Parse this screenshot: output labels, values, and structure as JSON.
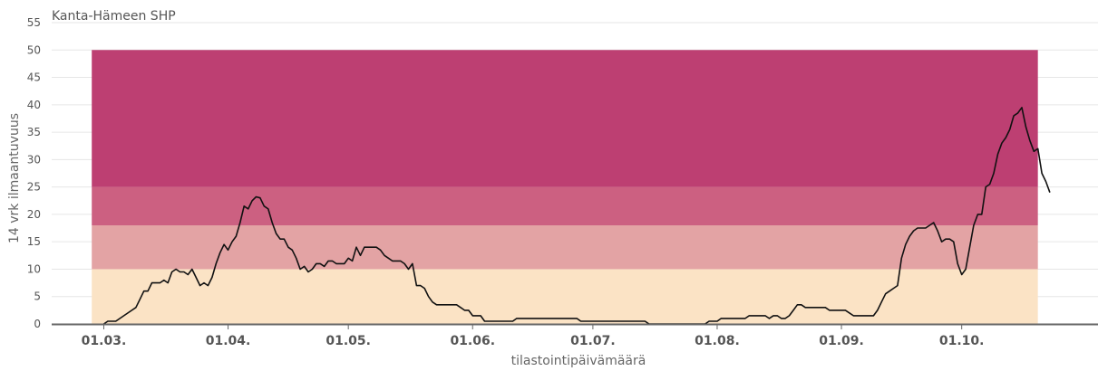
{
  "chart_data": {
    "type": "line",
    "title": "Kanta-Hämeen SHP",
    "xlabel": "tilastointipäivämäärä",
    "ylabel": "14 vrk ilmaantuvuus",
    "ylim": [
      0,
      55
    ],
    "yticks": [
      0,
      5,
      10,
      15,
      20,
      25,
      30,
      35,
      40,
      45,
      50,
      55
    ],
    "xticks": [
      {
        "label": "01.03.",
        "day": 0
      },
      {
        "label": "01.04.",
        "day": 31
      },
      {
        "label": "01.05.",
        "day": 61
      },
      {
        "label": "01.06.",
        "day": 92
      },
      {
        "label": "01.07.",
        "day": 122
      },
      {
        "label": "01.08.",
        "day": 153
      },
      {
        "label": "01.09.",
        "day": 184
      },
      {
        "label": "01.10.",
        "day": 214
      }
    ],
    "xrange_days": [
      -13,
      248
    ],
    "bands_xrange_days": [
      -3,
      233
    ],
    "bands": [
      {
        "from": 0,
        "to": 10,
        "color": "#fbe3c5"
      },
      {
        "from": 10,
        "to": 18,
        "color": "#e3a3a4"
      },
      {
        "from": 18,
        "to": 25,
        "color": "#cc6081"
      },
      {
        "from": 25,
        "to": 50,
        "color": "#bd3f72"
      }
    ],
    "grid": true,
    "series": [
      {
        "color": "#111111",
        "points": [
          [
            0,
            0
          ],
          [
            1,
            0.5
          ],
          [
            3,
            0.5
          ],
          [
            5,
            1.5
          ],
          [
            7,
            2.5
          ],
          [
            8,
            3
          ],
          [
            9,
            4.5
          ],
          [
            10,
            6
          ],
          [
            11,
            6
          ],
          [
            12,
            7.5
          ],
          [
            14,
            7.5
          ],
          [
            15,
            8
          ],
          [
            16,
            7.5
          ],
          [
            17,
            9.5
          ],
          [
            18,
            10
          ],
          [
            19,
            9.5
          ],
          [
            20,
            9.5
          ],
          [
            21,
            9
          ],
          [
            22,
            10
          ],
          [
            23,
            8.5
          ],
          [
            24,
            7
          ],
          [
            25,
            7.5
          ],
          [
            26,
            7
          ],
          [
            27,
            8.5
          ],
          [
            28,
            11
          ],
          [
            29,
            13
          ],
          [
            30,
            14.5
          ],
          [
            31,
            13.5
          ],
          [
            32,
            15
          ],
          [
            33,
            16
          ],
          [
            34,
            18.5
          ],
          [
            35,
            21.5
          ],
          [
            36,
            21
          ],
          [
            37,
            22.5
          ],
          [
            38,
            23.2
          ],
          [
            39,
            23
          ],
          [
            40,
            21.5
          ],
          [
            41,
            21
          ],
          [
            42,
            18.5
          ],
          [
            43,
            16.5
          ],
          [
            44,
            15.5
          ],
          [
            45,
            15.5
          ],
          [
            46,
            14
          ],
          [
            47,
            13.5
          ],
          [
            48,
            12
          ],
          [
            49,
            10
          ],
          [
            50,
            10.5
          ],
          [
            51,
            9.5
          ],
          [
            52,
            10
          ],
          [
            53,
            11
          ],
          [
            54,
            11
          ],
          [
            55,
            10.5
          ],
          [
            56,
            11.5
          ],
          [
            57,
            11.5
          ],
          [
            58,
            11
          ],
          [
            59,
            11
          ],
          [
            60,
            11
          ],
          [
            61,
            12
          ],
          [
            62,
            11.5
          ],
          [
            63,
            14
          ],
          [
            64,
            12.5
          ],
          [
            65,
            14
          ],
          [
            66,
            14
          ],
          [
            67,
            14
          ],
          [
            68,
            14
          ],
          [
            69,
            13.5
          ],
          [
            70,
            12.5
          ],
          [
            71,
            12
          ],
          [
            72,
            11.5
          ],
          [
            73,
            11.5
          ],
          [
            74,
            11.5
          ],
          [
            75,
            11
          ],
          [
            76,
            10
          ],
          [
            77,
            11
          ],
          [
            78,
            7
          ],
          [
            79,
            7
          ],
          [
            80,
            6.5
          ],
          [
            81,
            5
          ],
          [
            82,
            4
          ],
          [
            83,
            3.5
          ],
          [
            84,
            3.5
          ],
          [
            85,
            3.5
          ],
          [
            86,
            3.5
          ],
          [
            87,
            3.5
          ],
          [
            88,
            3.5
          ],
          [
            89,
            3
          ],
          [
            90,
            2.5
          ],
          [
            91,
            2.5
          ],
          [
            92,
            1.5
          ],
          [
            93,
            1.5
          ],
          [
            94,
            1.5
          ],
          [
            95,
            0.5
          ],
          [
            96,
            0.5
          ],
          [
            98,
            0.5
          ],
          [
            100,
            0.5
          ],
          [
            102,
            0.5
          ],
          [
            103,
            1
          ],
          [
            105,
            1
          ],
          [
            110,
            1
          ],
          [
            115,
            1
          ],
          [
            118,
            1
          ],
          [
            119,
            0.5
          ],
          [
            122,
            0.5
          ],
          [
            130,
            0.5
          ],
          [
            135,
            0.5
          ],
          [
            136,
            0
          ],
          [
            140,
            0
          ],
          [
            145,
            0
          ],
          [
            150,
            0
          ],
          [
            151,
            0.5
          ],
          [
            153,
            0.5
          ],
          [
            154,
            1
          ],
          [
            160,
            1
          ],
          [
            161,
            1.5
          ],
          [
            165,
            1.5
          ],
          [
            166,
            1
          ],
          [
            167,
            1.5
          ],
          [
            168,
            1.5
          ],
          [
            169,
            1
          ],
          [
            170,
            1
          ],
          [
            171,
            1.5
          ],
          [
            172,
            2.5
          ],
          [
            173,
            3.5
          ],
          [
            174,
            3.5
          ],
          [
            175,
            3
          ],
          [
            178,
            3
          ],
          [
            180,
            3
          ],
          [
            181,
            2.5
          ],
          [
            185,
            2.5
          ],
          [
            186,
            2
          ],
          [
            187,
            1.5
          ],
          [
            188,
            1.5
          ],
          [
            192,
            1.5
          ],
          [
            193,
            2.5
          ],
          [
            194,
            4
          ],
          [
            195,
            5.5
          ],
          [
            196,
            6
          ],
          [
            197,
            6.5
          ],
          [
            198,
            7
          ],
          [
            199,
            12
          ],
          [
            200,
            14.5
          ],
          [
            201,
            16
          ],
          [
            202,
            17
          ],
          [
            203,
            17.5
          ],
          [
            204,
            17.5
          ],
          [
            205,
            17.5
          ],
          [
            206,
            18
          ],
          [
            207,
            18.5
          ],
          [
            208,
            17
          ],
          [
            209,
            15
          ],
          [
            210,
            15.5
          ],
          [
            211,
            15.5
          ],
          [
            212,
            15
          ],
          [
            213,
            11
          ],
          [
            214,
            9
          ],
          [
            215,
            10
          ],
          [
            216,
            14
          ],
          [
            217,
            18
          ],
          [
            218,
            20
          ],
          [
            219,
            20
          ],
          [
            220,
            25
          ],
          [
            221,
            25.5
          ],
          [
            222,
            27.5
          ],
          [
            223,
            31
          ],
          [
            224,
            33
          ],
          [
            225,
            34
          ],
          [
            226,
            35.5
          ],
          [
            227,
            38
          ],
          [
            228,
            38.5
          ],
          [
            229,
            39.5
          ],
          [
            230,
            36
          ],
          [
            231,
            33.5
          ],
          [
            232,
            31.5
          ],
          [
            233,
            32
          ],
          [
            234,
            27.5
          ],
          [
            235,
            26
          ],
          [
            236,
            24
          ]
        ]
      }
    ]
  }
}
